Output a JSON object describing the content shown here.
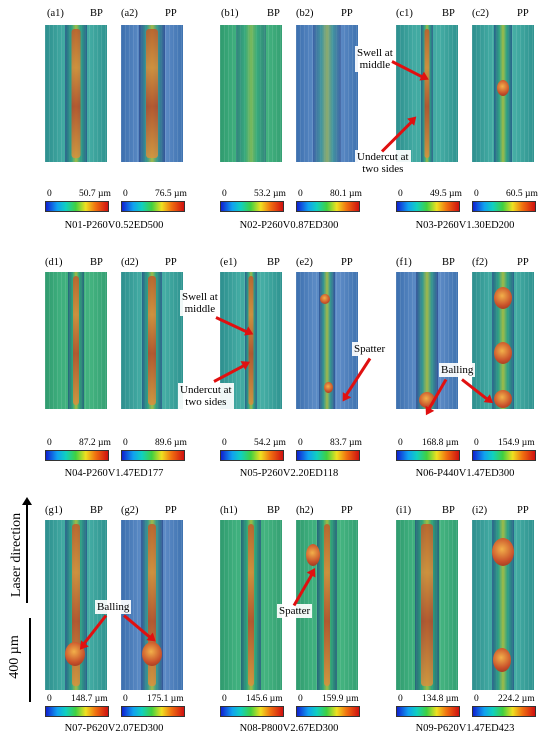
{
  "panels": [
    {
      "id": "a1",
      "tag": "(a1)",
      "kind": "BP",
      "max": "50.7 µm",
      "zero": "0"
    },
    {
      "id": "a2",
      "tag": "(a2)",
      "kind": "PP",
      "max": "76.5 µm",
      "zero": "0"
    },
    {
      "id": "b1",
      "tag": "(b1)",
      "kind": "BP",
      "max": "53.2 µm",
      "zero": "0"
    },
    {
      "id": "b2",
      "tag": "(b2)",
      "kind": "PP",
      "max": "80.1 µm",
      "zero": "0"
    },
    {
      "id": "c1",
      "tag": "(c1)",
      "kind": "BP",
      "max": "49.5 µm",
      "zero": "0"
    },
    {
      "id": "c2",
      "tag": "(c2)",
      "kind": "PP",
      "max": "60.5 µm",
      "zero": "0"
    },
    {
      "id": "d1",
      "tag": "(d1)",
      "kind": "BP",
      "max": "87.2 µm",
      "zero": "0"
    },
    {
      "id": "d2",
      "tag": "(d2)",
      "kind": "PP",
      "max": "89.6 µm",
      "zero": "0"
    },
    {
      "id": "e1",
      "tag": "(e1)",
      "kind": "BP",
      "max": "54.2 µm",
      "zero": "0"
    },
    {
      "id": "e2",
      "tag": "(e2)",
      "kind": "PP",
      "max": "83.7 µm",
      "zero": "0"
    },
    {
      "id": "f1",
      "tag": "(f1)",
      "kind": "BP",
      "max": "168.8 µm",
      "zero": "0"
    },
    {
      "id": "f2",
      "tag": "(f2)",
      "kind": "PP",
      "max": "154.9 µm",
      "zero": "0"
    },
    {
      "id": "g1",
      "tag": "(g1)",
      "kind": "BP",
      "max": "148.7 µm",
      "zero": "0"
    },
    {
      "id": "g2",
      "tag": "(g2)",
      "kind": "PP",
      "max": "175.1 µm",
      "zero": "0"
    },
    {
      "id": "h1",
      "tag": "(h1)",
      "kind": "BP",
      "max": "145.6 µm",
      "zero": "0"
    },
    {
      "id": "h2",
      "tag": "(h2)",
      "kind": "PP",
      "max": "159.9 µm",
      "zero": "0"
    },
    {
      "id": "i1",
      "tag": "(i1)",
      "kind": "BP",
      "max": "134.8 µm",
      "zero": "0"
    },
    {
      "id": "i2",
      "tag": "(i2)",
      "kind": "PP",
      "max": "224.2 µm",
      "zero": "0"
    }
  ],
  "captions": {
    "r1c1": "N01-P260V0.52ED500",
    "r1c2": "N02-P260V0.87ED300",
    "r1c3": "N03-P260V1.30ED200",
    "r2c1": "N04-P260V1.47ED177",
    "r2c2": "N05-P260V2.20ED118",
    "r2c3": "N06-P440V1.47ED300",
    "r3c1": "N07-P620V2.07ED300",
    "r3c2": "N08-P800V2.67ED300",
    "r3c3": "N09-P620V1.47ED423"
  },
  "annotations": {
    "c_swell": "Swell at middle",
    "c_undercut": "Undercut at two sides",
    "e_swell": "Swell at middle",
    "e_undercut": "Undercut at two sides",
    "e_spatter": "Spatter",
    "f_balling": "Balling",
    "g_balling": "Balling",
    "h_spatter": "Spatter"
  },
  "side": {
    "laser_direction": "Laser direction",
    "scale": "400 µm"
  }
}
